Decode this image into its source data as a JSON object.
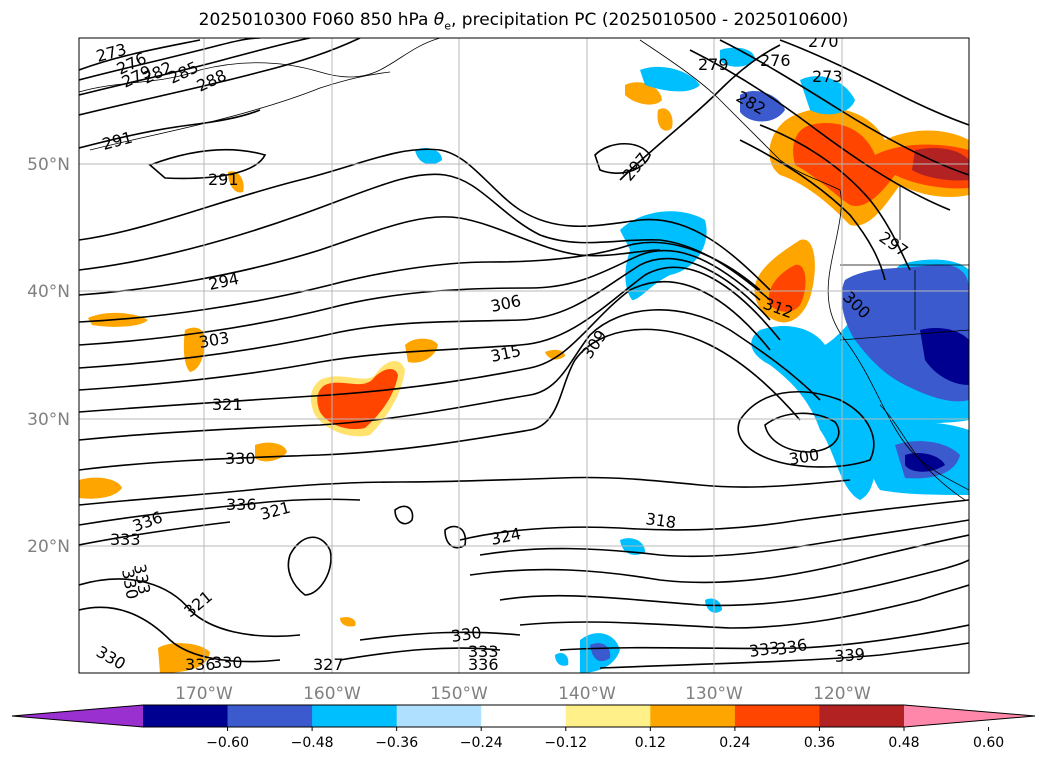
{
  "title": {
    "prefix": "2025010300 F060 850 hPa ",
    "theta": "θ",
    "theta_sub": "e",
    "suffix": ", precipitation PC (2025010500 - 2025010600)"
  },
  "axes": {
    "lat_labels": [
      "50°N",
      "40°N",
      "30°N",
      "20°N"
    ],
    "lon_labels": [
      "170°W",
      "160°W",
      "150°W",
      "140°W",
      "130°W",
      "120°W"
    ]
  },
  "contour_labels": [
    "273",
    "276",
    "279",
    "282",
    "285",
    "288",
    "291",
    "291",
    "270",
    "276",
    "273",
    "279",
    "282",
    "297",
    "297",
    "294",
    "306",
    "303",
    "315",
    "309",
    "312",
    "300",
    "321",
    "300",
    "330",
    "336",
    "321",
    "318",
    "336",
    "324",
    "333",
    "330",
    "333",
    "321",
    "330",
    "330",
    "333",
    "327",
    "333",
    "336",
    "336",
    "339",
    "336",
    "330"
  ],
  "colorbar": {
    "ticks": [
      "−0.60",
      "−0.48",
      "−0.36",
      "−0.24",
      "−0.12",
      "0.12",
      "0.24",
      "0.36",
      "0.48",
      "0.60"
    ],
    "colors": [
      "#9b30d0",
      "#000090",
      "#3a5acd",
      "#00bfff",
      "#b0e0ff",
      "#ffffff",
      "#fff08a",
      "#ffa500",
      "#ff4500",
      "#b22222",
      "#ff88aa"
    ]
  }
}
